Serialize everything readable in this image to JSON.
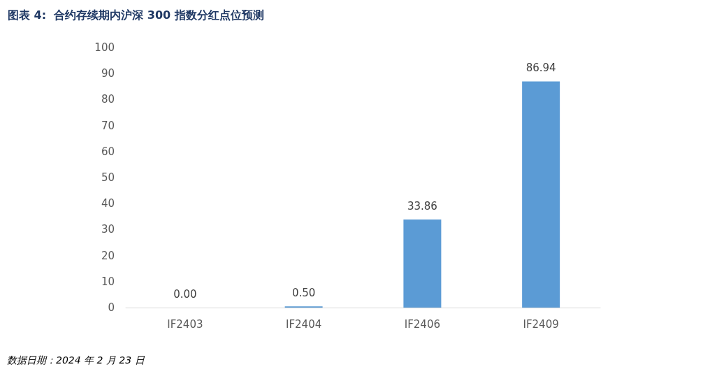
{
  "chart_data": {
    "type": "bar",
    "title": "图表 4:  合约存续期内沪深 300 指数分红点位预测",
    "categories": [
      "IF2403",
      "IF2404",
      "IF2406",
      "IF2409"
    ],
    "values": [
      0,
      0.5,
      33.86,
      86.94
    ],
    "value_labels": [
      "0.00",
      "0.50",
      "33.86",
      "86.94"
    ],
    "color": "#5b9bd5",
    "ylim": [
      0,
      100
    ],
    "yticks": [
      0,
      10,
      20,
      30,
      40,
      50,
      60,
      70,
      80,
      90,
      100
    ],
    "annotations": [
      "数据日期：2024 年 2 月 23 日"
    ]
  }
}
